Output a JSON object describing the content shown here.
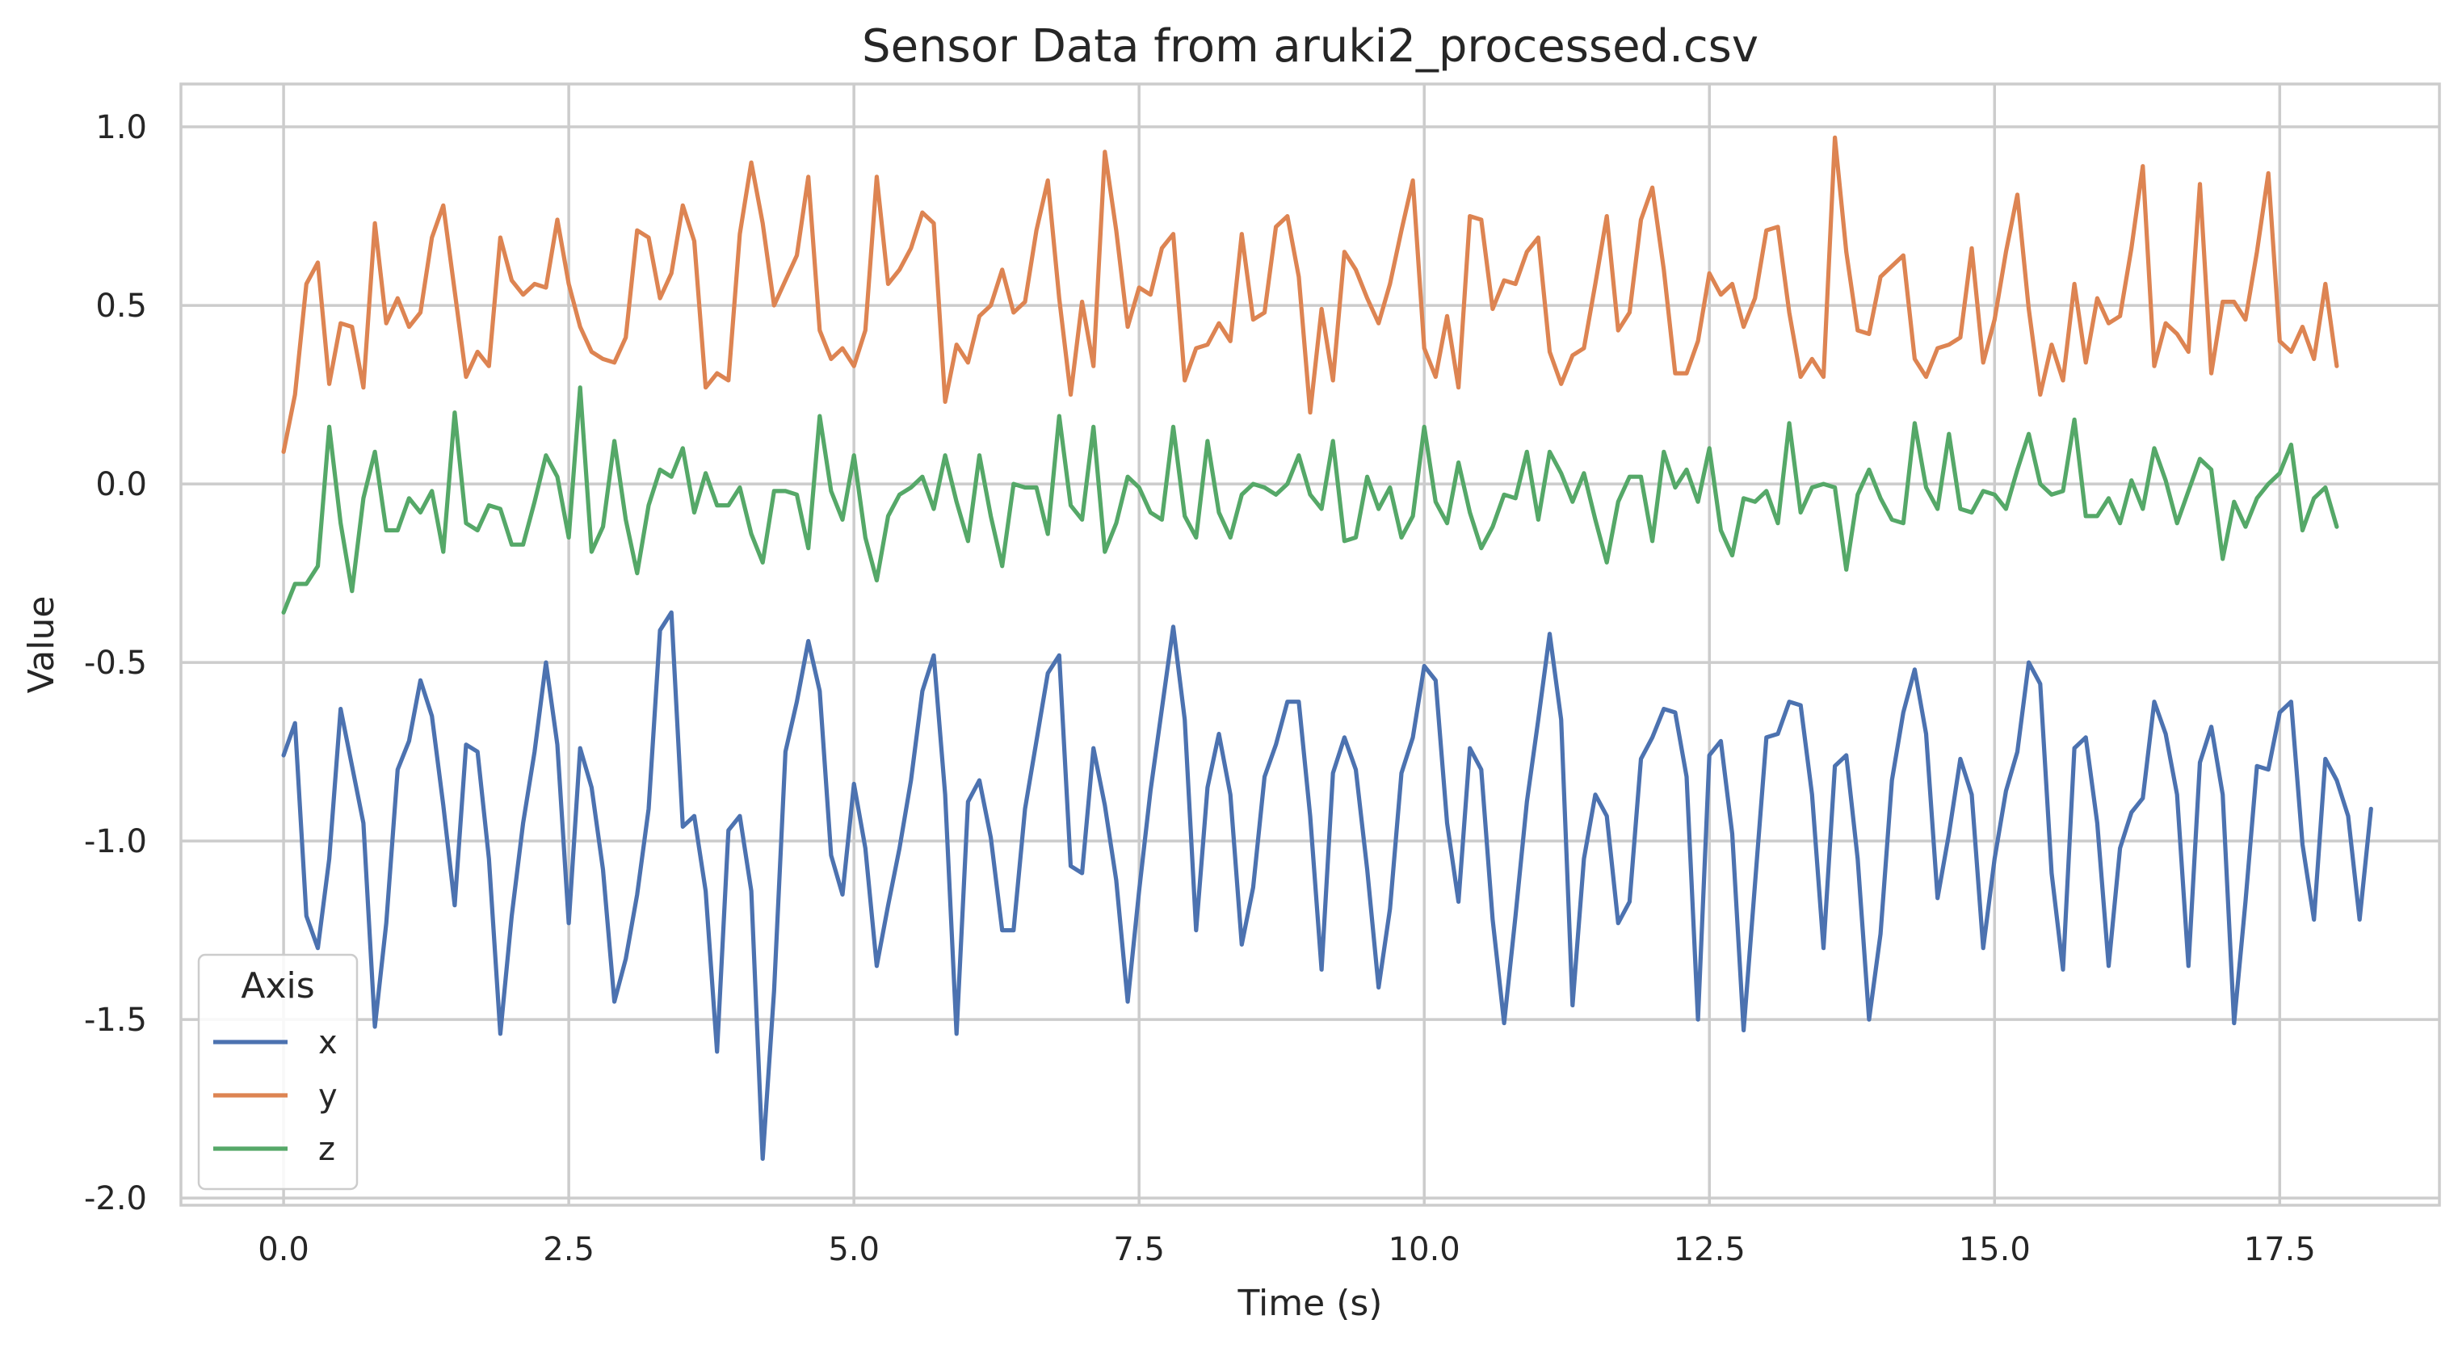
{
  "chart_data": {
    "type": "line",
    "title": "Sensor Data from aruki2_processed.csv",
    "xlabel": "Time (s)",
    "ylabel": "Value",
    "xlim": [
      -0.9,
      18.9
    ],
    "ylim": [
      -2.02,
      1.12
    ],
    "xticks": [
      0.0,
      2.5,
      5.0,
      7.5,
      10.0,
      12.5,
      15.0,
      17.5
    ],
    "xtick_labels": [
      "0.0",
      "2.5",
      "5.0",
      "7.5",
      "10.0",
      "12.5",
      "15.0",
      "17.5"
    ],
    "yticks": [
      1.0,
      0.5,
      0.0,
      -0.5,
      -1.0,
      -1.5,
      -2.0
    ],
    "ytick_labels": [
      "1.0",
      "0.5",
      "0.0",
      "-0.5",
      "-1.0",
      "-1.5",
      "-2.0"
    ],
    "grid": true,
    "legend": {
      "title": "Axis",
      "position": "lower-left"
    },
    "x_start": 0.0,
    "x_step": 0.1,
    "series": [
      {
        "name": "x",
        "color": "#4c72b0",
        "values": [
          -0.76,
          -0.67,
          -1.21,
          -1.3,
          -1.05,
          -0.63,
          -0.79,
          -0.95,
          -1.52,
          -1.23,
          -0.8,
          -0.72,
          -0.55,
          -0.65,
          -0.9,
          -1.18,
          -0.73,
          -0.75,
          -1.05,
          -1.54,
          -1.21,
          -0.95,
          -0.75,
          -0.5,
          -0.73,
          -1.23,
          -0.74,
          -0.85,
          -1.08,
          -1.45,
          -1.33,
          -1.15,
          -0.91,
          -0.41,
          -0.36,
          -0.96,
          -0.93,
          -1.14,
          -1.59,
          -0.97,
          -0.93,
          -1.14,
          -1.89,
          -1.42,
          -0.75,
          -0.61,
          -0.44,
          -0.58,
          -1.04,
          -1.15,
          -0.84,
          -1.02,
          -1.35,
          -1.18,
          -1.02,
          -0.83,
          -0.58,
          -0.48,
          -0.87,
          -1.54,
          -0.89,
          -0.83,
          -0.99,
          -1.25,
          -1.25,
          -0.91,
          -0.72,
          -0.53,
          -0.48,
          -1.07,
          -1.09,
          -0.74,
          -0.9,
          -1.11,
          -1.45,
          -1.14,
          -0.86,
          -0.63,
          -0.4,
          -0.66,
          -1.25,
          -0.85,
          -0.7,
          -0.87,
          -1.29,
          -1.13,
          -0.82,
          -0.73,
          -0.61,
          -0.61,
          -0.93,
          -1.36,
          -0.81,
          -0.71,
          -0.8,
          -1.08,
          -1.41,
          -1.19,
          -0.81,
          -0.71,
          -0.51,
          -0.55,
          -0.95,
          -1.17,
          -0.74,
          -0.8,
          -1.22,
          -1.51,
          -1.21,
          -0.89,
          -0.66,
          -0.42,
          -0.66,
          -1.46,
          -1.05,
          -0.87,
          -0.93,
          -1.23,
          -1.17,
          -0.77,
          -0.71,
          -0.63,
          -0.64,
          -0.82,
          -1.5,
          -0.76,
          -0.72,
          -0.98,
          -1.53,
          -1.12,
          -0.71,
          -0.7,
          -0.61,
          -0.62,
          -0.87,
          -1.3,
          -0.79,
          -0.76,
          -1.05,
          -1.5,
          -1.26,
          -0.83,
          -0.64,
          -0.52,
          -0.7,
          -1.16,
          -0.98,
          -0.77,
          -0.87,
          -1.3,
          -1.05,
          -0.86,
          -0.75,
          -0.5,
          -0.56,
          -1.09,
          -1.36,
          -0.74,
          -0.71,
          -0.95,
          -1.35,
          -1.02,
          -0.92,
          -0.88,
          -0.61,
          -0.7,
          -0.87,
          -1.35,
          -0.78,
          -0.68,
          -0.87,
          -1.51,
          -1.17,
          -0.79,
          -0.8,
          -0.64,
          -0.61,
          -1.01,
          -1.22,
          -0.77,
          -0.83,
          -0.93,
          -1.22,
          -0.91
        ]
      },
      {
        "name": "y",
        "color": "#dd8452",
        "values": [
          0.09,
          0.25,
          0.56,
          0.62,
          0.28,
          0.45,
          0.44,
          0.27,
          0.73,
          0.45,
          0.52,
          0.44,
          0.48,
          0.69,
          0.78,
          0.54,
          0.3,
          0.37,
          0.33,
          0.69,
          0.57,
          0.53,
          0.56,
          0.55,
          0.74,
          0.56,
          0.44,
          0.37,
          0.35,
          0.34,
          0.41,
          0.71,
          0.69,
          0.52,
          0.59,
          0.78,
          0.68,
          0.27,
          0.31,
          0.29,
          0.7,
          0.9,
          0.73,
          0.5,
          0.57,
          0.64,
          0.86,
          0.43,
          0.35,
          0.38,
          0.33,
          0.43,
          0.86,
          0.56,
          0.6,
          0.66,
          0.76,
          0.73,
          0.23,
          0.39,
          0.34,
          0.47,
          0.5,
          0.6,
          0.48,
          0.51,
          0.71,
          0.85,
          0.52,
          0.25,
          0.51,
          0.33,
          0.93,
          0.71,
          0.44,
          0.55,
          0.53,
          0.66,
          0.7,
          0.29,
          0.38,
          0.39,
          0.45,
          0.4,
          0.7,
          0.46,
          0.48,
          0.72,
          0.75,
          0.58,
          0.2,
          0.49,
          0.29,
          0.65,
          0.6,
          0.52,
          0.45,
          0.56,
          0.71,
          0.85,
          0.38,
          0.3,
          0.47,
          0.27,
          0.75,
          0.74,
          0.49,
          0.57,
          0.56,
          0.65,
          0.69,
          0.37,
          0.28,
          0.36,
          0.38,
          0.56,
          0.75,
          0.43,
          0.48,
          0.74,
          0.83,
          0.6,
          0.31,
          0.31,
          0.4,
          0.59,
          0.53,
          0.56,
          0.44,
          0.52,
          0.71,
          0.72,
          0.48,
          0.3,
          0.35,
          0.3,
          0.97,
          0.65,
          0.43,
          0.42,
          0.58,
          0.61,
          0.64,
          0.35,
          0.3,
          0.38,
          0.39,
          0.41,
          0.66,
          0.34,
          0.46,
          0.65,
          0.81,
          0.49,
          0.25,
          0.39,
          0.29,
          0.56,
          0.34,
          0.52,
          0.45,
          0.47,
          0.66,
          0.89,
          0.33,
          0.45,
          0.42,
          0.37,
          0.84,
          0.31,
          0.51,
          0.51,
          0.46,
          0.65,
          0.87,
          0.4,
          0.37,
          0.44,
          0.35,
          0.56,
          0.33
        ]
      },
      {
        "name": "z",
        "color": "#55a868",
        "values": [
          -0.36,
          -0.28,
          -0.28,
          -0.23,
          0.16,
          -0.11,
          -0.3,
          -0.04,
          0.09,
          -0.13,
          -0.13,
          -0.04,
          -0.08,
          -0.02,
          -0.19,
          0.2,
          -0.11,
          -0.13,
          -0.06,
          -0.07,
          -0.17,
          -0.17,
          -0.05,
          0.08,
          0.02,
          -0.15,
          0.27,
          -0.19,
          -0.12,
          0.12,
          -0.1,
          -0.25,
          -0.06,
          0.04,
          0.02,
          0.1,
          -0.08,
          0.03,
          -0.06,
          -0.06,
          -0.01,
          -0.14,
          -0.22,
          -0.02,
          -0.02,
          -0.03,
          -0.18,
          0.19,
          -0.02,
          -0.1,
          0.08,
          -0.15,
          -0.27,
          -0.09,
          -0.03,
          -0.01,
          0.02,
          -0.07,
          0.08,
          -0.05,
          -0.16,
          0.08,
          -0.09,
          -0.23,
          0.0,
          -0.01,
          -0.01,
          -0.14,
          0.19,
          -0.06,
          -0.1,
          0.16,
          -0.19,
          -0.11,
          0.02,
          -0.01,
          -0.08,
          -0.1,
          0.16,
          -0.09,
          -0.15,
          0.12,
          -0.08,
          -0.15,
          -0.03,
          0.0,
          -0.01,
          -0.03,
          0.0,
          0.08,
          -0.03,
          -0.07,
          0.12,
          -0.16,
          -0.15,
          0.02,
          -0.07,
          -0.01,
          -0.15,
          -0.09,
          0.16,
          -0.05,
          -0.11,
          0.06,
          -0.08,
          -0.18,
          -0.12,
          -0.03,
          -0.04,
          0.09,
          -0.1,
          0.09,
          0.03,
          -0.05,
          0.03,
          -0.1,
          -0.22,
          -0.05,
          0.02,
          0.02,
          -0.16,
          0.09,
          -0.01,
          0.04,
          -0.05,
          0.1,
          -0.13,
          -0.2,
          -0.04,
          -0.05,
          -0.02,
          -0.11,
          0.17,
          -0.08,
          -0.01,
          0.0,
          -0.01,
          -0.24,
          -0.03,
          0.04,
          -0.04,
          -0.1,
          -0.11,
          0.17,
          -0.01,
          -0.07,
          0.14,
          -0.07,
          -0.08,
          -0.02,
          -0.03,
          -0.07,
          0.04,
          0.14,
          0.0,
          -0.03,
          -0.02,
          0.18,
          -0.09,
          -0.09,
          -0.04,
          -0.11,
          0.01,
          -0.07,
          0.1,
          0.01,
          -0.11,
          -0.02,
          0.07,
          0.04,
          -0.21,
          -0.05,
          -0.12,
          -0.04,
          0.0,
          0.03,
          0.11,
          -0.13,
          -0.04,
          -0.01,
          -0.12
        ]
      }
    ]
  }
}
